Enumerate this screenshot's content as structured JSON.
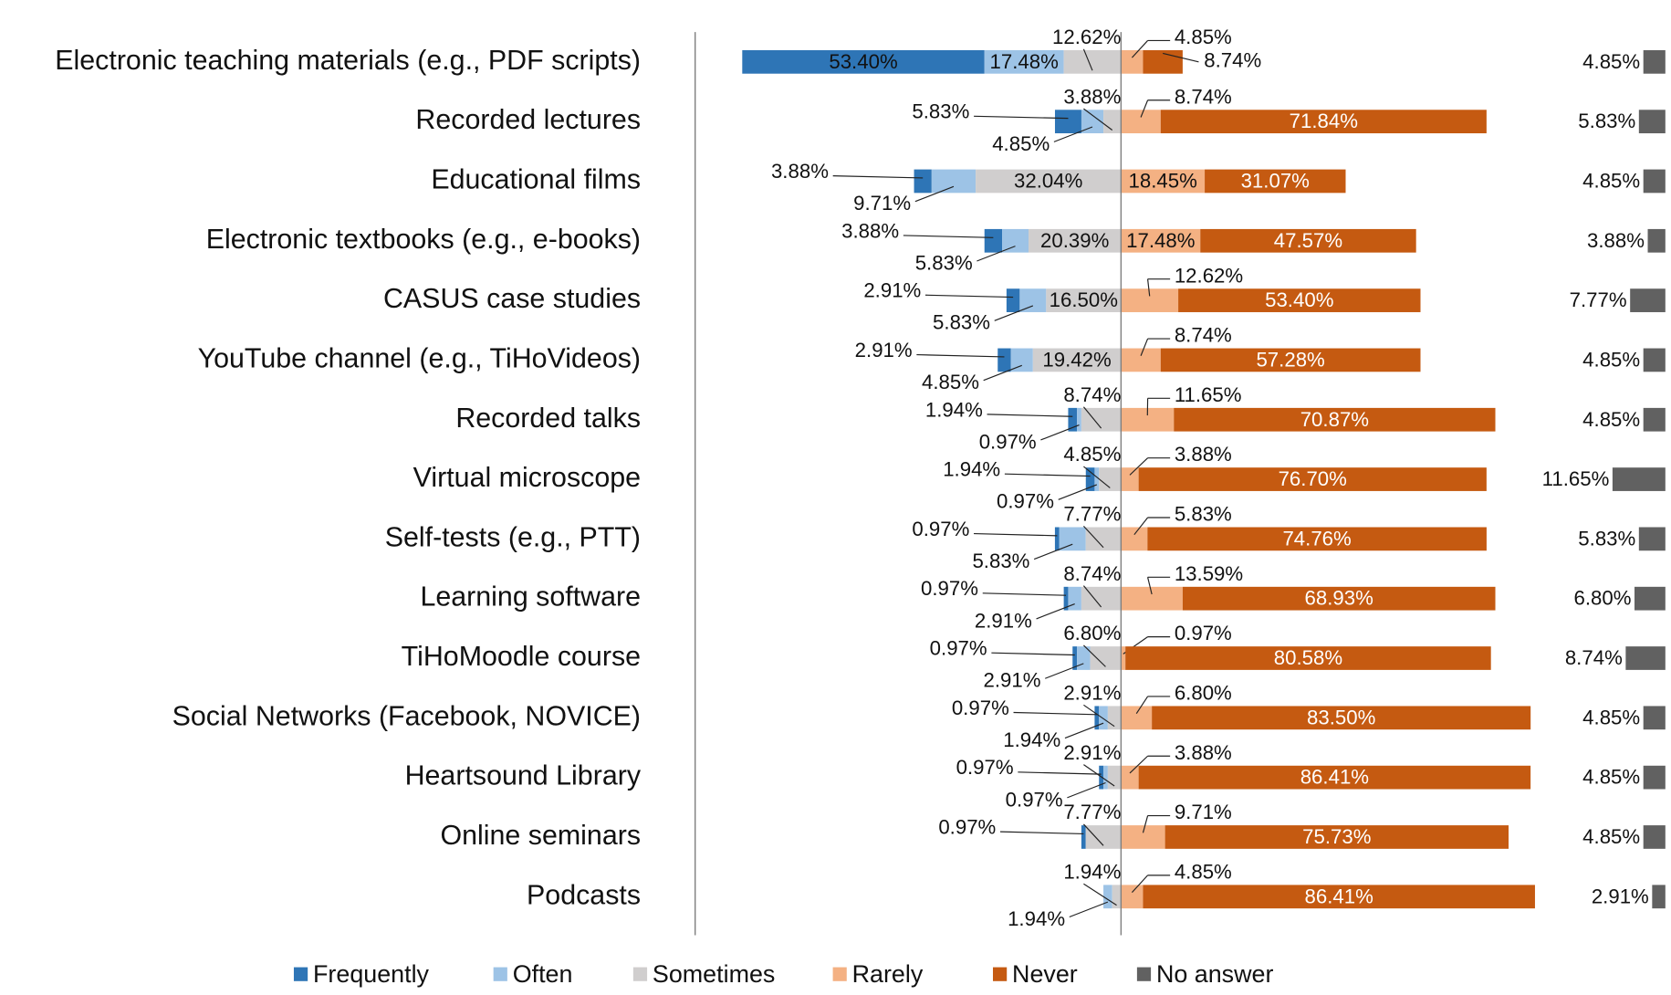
{
  "chart_data": {
    "type": "diverging-bar",
    "categories": [
      "Electronic teaching materials (e.g., PDF scripts)",
      "Recorded lectures",
      "Educational films",
      "Electronic textbooks (e.g., e-books)",
      "CASUS case studies",
      "YouTube channel (e.g., TiHoVideos)",
      "Recorded talks",
      "Virtual microscope",
      "Self-tests (e.g., PTT)",
      "Learning software",
      "TiHoMoodle course",
      "Social Networks (Facebook, NOVICE)",
      "Heartsound Library",
      "Online seminars",
      "Podcasts"
    ],
    "series": [
      {
        "name": "Frequently",
        "color": "#2e75b6",
        "side": "left",
        "values": [
          53.4,
          5.83,
          3.88,
          3.88,
          2.91,
          2.91,
          1.94,
          1.94,
          0.97,
          0.97,
          0.97,
          0.97,
          0.97,
          0.97,
          null
        ],
        "value_labels": [
          "53.40%",
          "5.83%",
          "3.88%",
          "3.88%",
          "2.91%",
          "2.91%",
          "1.94%",
          "1.94%",
          "0.97%",
          "0.97%",
          "0.97%",
          "0.97%",
          "0.97%",
          "0.97%",
          null
        ]
      },
      {
        "name": "Often",
        "color": "#9dc3e6",
        "side": "left",
        "values": [
          17.48,
          4.85,
          9.71,
          5.83,
          5.83,
          4.85,
          0.97,
          0.97,
          5.83,
          2.91,
          2.91,
          1.94,
          0.97,
          null,
          1.94
        ],
        "value_labels": [
          "17.48%",
          "4.85%",
          "9.71%",
          "5.83%",
          "5.83%",
          "4.85%",
          "0.97%",
          "0.97%",
          "5.83%",
          "2.91%",
          "2.91%",
          "1.94%",
          "0.97%",
          null,
          "1.94%"
        ]
      },
      {
        "name": "Sometimes",
        "color": "#d0cece",
        "side": "left",
        "values": [
          12.62,
          3.88,
          32.04,
          20.39,
          16.5,
          19.42,
          8.74,
          4.85,
          7.77,
          8.74,
          6.8,
          2.91,
          2.91,
          7.77,
          1.94
        ],
        "value_labels": [
          "12.62%",
          "3.88%",
          "32.04%",
          "20.39%",
          "16.50%",
          "19.42%",
          "8.74%",
          "4.85%",
          "7.77%",
          "8.74%",
          "6.80%",
          "2.91%",
          "2.91%",
          "7.77%",
          "1.94%"
        ]
      },
      {
        "name": "Rarely",
        "color": "#f4b183",
        "side": "right",
        "values": [
          4.85,
          8.74,
          18.45,
          17.48,
          12.62,
          8.74,
          11.65,
          3.88,
          5.83,
          13.59,
          0.97,
          6.8,
          3.88,
          9.71,
          4.85
        ],
        "value_labels": [
          "4.85%",
          "8.74%",
          "18.45%",
          "17.48%",
          "12.62%",
          "8.74%",
          "11.65%",
          "3.88%",
          "5.83%",
          "13.59%",
          "0.97%",
          "6.80%",
          "3.88%",
          "9.71%",
          "4.85%"
        ]
      },
      {
        "name": "Never",
        "color": "#c55a11",
        "side": "right",
        "values": [
          8.74,
          71.84,
          31.07,
          47.57,
          53.4,
          57.28,
          70.87,
          76.7,
          74.76,
          68.93,
          80.58,
          83.5,
          86.41,
          75.73,
          86.41
        ],
        "value_labels": [
          "8.74%",
          "71.84%",
          "31.07%",
          "47.57%",
          "53.40%",
          "57.28%",
          "70.87%",
          "76.70%",
          "74.76%",
          "68.93%",
          "80.58%",
          "83.50%",
          "86.41%",
          "75.73%",
          "86.41%"
        ]
      },
      {
        "name": "No answer",
        "color": "#616161",
        "side": "separate",
        "values": [
          4.85,
          5.83,
          4.85,
          3.88,
          7.77,
          4.85,
          4.85,
          11.65,
          5.83,
          6.8,
          8.74,
          4.85,
          4.85,
          4.85,
          2.91
        ],
        "value_labels": [
          "4.85%",
          "5.83%",
          "4.85%",
          "3.88%",
          "7.77%",
          "4.85%",
          "4.85%",
          "11.65%",
          "5.83%",
          "6.80%",
          "8.74%",
          "4.85%",
          "4.85%",
          "4.85%",
          "2.91%"
        ]
      }
    ]
  }
}
